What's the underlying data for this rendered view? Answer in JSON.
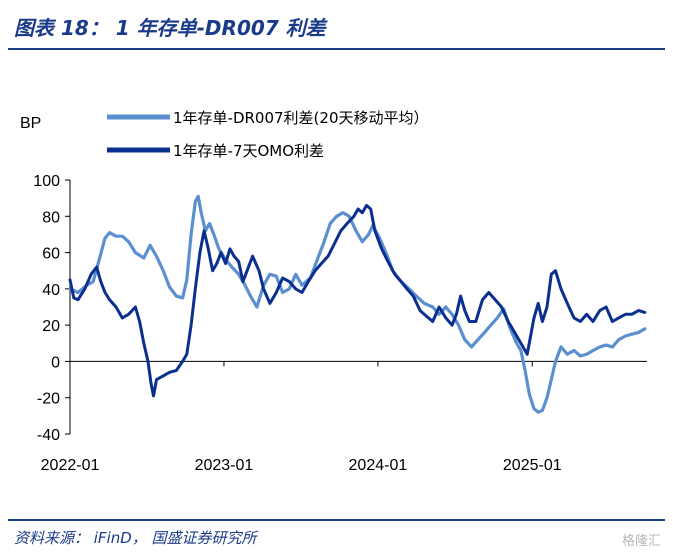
{
  "header": {
    "title": "图表 18： 1 年存单-DR007 利差"
  },
  "footer": {
    "source": "资料来源： iFinD， 国盛证券研究所",
    "watermark": "格隆汇"
  },
  "colors": {
    "accent": "#1a3a8a",
    "series_light": "#5b8fd0",
    "series_dark": "#0a2f8f"
  },
  "chart_data": {
    "type": "line",
    "ylabel": "BP",
    "ylim": [
      -40,
      100
    ],
    "yticks": [
      "100",
      "80",
      "60",
      "40",
      "20",
      "0",
      "-20",
      "-40"
    ],
    "xlim": [
      "2022-01-01",
      "2025-09-30"
    ],
    "xticks": [
      "2022-01",
      "2023-01",
      "2024-01",
      "2025-01"
    ],
    "grid": false,
    "legend": "top",
    "series": [
      {
        "name": "1年存单-DR007利差(20天移动平均）",
        "color": "#5b8fd0",
        "points": [
          [
            "2022-01-01",
            40
          ],
          [
            "2022-01-20",
            38
          ],
          [
            "2022-02-10",
            42
          ],
          [
            "2022-02-25",
            44
          ],
          [
            "2022-03-10",
            55
          ],
          [
            "2022-03-25",
            68
          ],
          [
            "2022-04-05",
            71
          ],
          [
            "2022-04-20",
            69
          ],
          [
            "2022-05-05",
            69
          ],
          [
            "2022-05-20",
            66
          ],
          [
            "2022-06-05",
            60
          ],
          [
            "2022-06-25",
            57
          ],
          [
            "2022-07-10",
            64
          ],
          [
            "2022-07-25",
            58
          ],
          [
            "2022-08-10",
            50
          ],
          [
            "2022-08-25",
            41
          ],
          [
            "2022-09-10",
            36
          ],
          [
            "2022-09-25",
            35
          ],
          [
            "2022-10-05",
            45
          ],
          [
            "2022-10-15",
            70
          ],
          [
            "2022-10-25",
            88
          ],
          [
            "2022-11-01",
            91
          ],
          [
            "2022-11-08",
            82
          ],
          [
            "2022-11-18",
            72
          ],
          [
            "2022-11-28",
            76
          ],
          [
            "2022-12-08",
            70
          ],
          [
            "2022-12-20",
            62
          ],
          [
            "2023-01-05",
            56
          ],
          [
            "2023-01-20",
            52
          ],
          [
            "2023-02-05",
            48
          ],
          [
            "2023-02-20",
            42
          ],
          [
            "2023-03-05",
            36
          ],
          [
            "2023-03-20",
            30
          ],
          [
            "2023-04-05",
            42
          ],
          [
            "2023-04-20",
            48
          ],
          [
            "2023-05-05",
            47
          ],
          [
            "2023-05-20",
            38
          ],
          [
            "2023-06-05",
            40
          ],
          [
            "2023-06-20",
            48
          ],
          [
            "2023-07-05",
            42
          ],
          [
            "2023-07-25",
            46
          ],
          [
            "2023-08-10",
            56
          ],
          [
            "2023-08-25",
            65
          ],
          [
            "2023-09-10",
            76
          ],
          [
            "2023-09-25",
            80
          ],
          [
            "2023-10-10",
            82
          ],
          [
            "2023-10-25",
            80
          ],
          [
            "2023-11-10",
            72
          ],
          [
            "2023-11-25",
            66
          ],
          [
            "2023-12-10",
            70
          ],
          [
            "2023-12-20",
            75
          ],
          [
            "2024-01-05",
            68
          ],
          [
            "2024-01-20",
            60
          ],
          [
            "2024-02-05",
            50
          ],
          [
            "2024-02-25",
            44
          ],
          [
            "2024-03-15",
            40
          ],
          [
            "2024-04-01",
            36
          ],
          [
            "2024-04-20",
            32
          ],
          [
            "2024-05-10",
            30
          ],
          [
            "2024-05-25",
            26
          ],
          [
            "2024-06-10",
            30
          ],
          [
            "2024-06-25",
            26
          ],
          [
            "2024-07-10",
            20
          ],
          [
            "2024-07-25",
            12
          ],
          [
            "2024-08-10",
            8
          ],
          [
            "2024-08-25",
            12
          ],
          [
            "2024-09-10",
            16
          ],
          [
            "2024-09-25",
            20
          ],
          [
            "2024-10-10",
            24
          ],
          [
            "2024-10-25",
            29
          ],
          [
            "2024-11-10",
            18
          ],
          [
            "2024-11-25",
            10
          ],
          [
            "2024-12-05",
            6
          ],
          [
            "2024-12-15",
            -5
          ],
          [
            "2024-12-25",
            -18
          ],
          [
            "2025-01-05",
            -26
          ],
          [
            "2025-01-15",
            -28
          ],
          [
            "2025-01-25",
            -27
          ],
          [
            "2025-02-05",
            -20
          ],
          [
            "2025-02-15",
            -10
          ],
          [
            "2025-02-25",
            0
          ],
          [
            "2025-03-10",
            8
          ],
          [
            "2025-03-25",
            4
          ],
          [
            "2025-04-10",
            6
          ],
          [
            "2025-04-25",
            3
          ],
          [
            "2025-05-10",
            4
          ],
          [
            "2025-05-25",
            6
          ],
          [
            "2025-06-10",
            8
          ],
          [
            "2025-06-25",
            9
          ],
          [
            "2025-07-10",
            8
          ],
          [
            "2025-07-25",
            12
          ],
          [
            "2025-08-10",
            14
          ],
          [
            "2025-08-25",
            15
          ],
          [
            "2025-09-10",
            16
          ],
          [
            "2025-09-25",
            18
          ]
        ]
      },
      {
        "name": "1年存单-7天OMO利差",
        "color": "#0a2f8f",
        "points": [
          [
            "2022-01-01",
            45
          ],
          [
            "2022-01-10",
            35
          ],
          [
            "2022-01-20",
            34
          ],
          [
            "2022-02-05",
            40
          ],
          [
            "2022-02-20",
            48
          ],
          [
            "2022-03-05",
            52
          ],
          [
            "2022-03-15",
            44
          ],
          [
            "2022-03-25",
            38
          ],
          [
            "2022-04-05",
            34
          ],
          [
            "2022-04-20",
            30
          ],
          [
            "2022-05-05",
            24
          ],
          [
            "2022-05-20",
            26
          ],
          [
            "2022-06-05",
            30
          ],
          [
            "2022-06-15",
            22
          ],
          [
            "2022-06-25",
            10
          ],
          [
            "2022-07-05",
            0
          ],
          [
            "2022-07-12",
            -12
          ],
          [
            "2022-07-18",
            -19
          ],
          [
            "2022-07-25",
            -10
          ],
          [
            "2022-08-10",
            -8
          ],
          [
            "2022-08-25",
            -6
          ],
          [
            "2022-09-10",
            -5
          ],
          [
            "2022-09-25",
            0
          ],
          [
            "2022-10-05",
            4
          ],
          [
            "2022-10-15",
            20
          ],
          [
            "2022-10-25",
            40
          ],
          [
            "2022-11-05",
            60
          ],
          [
            "2022-11-15",
            72
          ],
          [
            "2022-11-25",
            62
          ],
          [
            "2022-12-05",
            50
          ],
          [
            "2022-12-15",
            54
          ],
          [
            "2022-12-25",
            60
          ],
          [
            "2023-01-05",
            54
          ],
          [
            "2023-01-15",
            62
          ],
          [
            "2023-01-25",
            58
          ],
          [
            "2023-02-05",
            55
          ],
          [
            "2023-02-15",
            44
          ],
          [
            "2023-02-25",
            50
          ],
          [
            "2023-03-10",
            58
          ],
          [
            "2023-03-25",
            50
          ],
          [
            "2023-04-05",
            40
          ],
          [
            "2023-04-20",
            32
          ],
          [
            "2023-05-05",
            38
          ],
          [
            "2023-05-20",
            46
          ],
          [
            "2023-06-05",
            44
          ],
          [
            "2023-06-20",
            40
          ],
          [
            "2023-07-05",
            38
          ],
          [
            "2023-07-20",
            44
          ],
          [
            "2023-08-05",
            50
          ],
          [
            "2023-08-20",
            54
          ],
          [
            "2023-09-05",
            58
          ],
          [
            "2023-09-20",
            65
          ],
          [
            "2023-10-05",
            72
          ],
          [
            "2023-10-20",
            76
          ],
          [
            "2023-11-05",
            80
          ],
          [
            "2023-11-15",
            84
          ],
          [
            "2023-11-25",
            82
          ],
          [
            "2023-12-05",
            86
          ],
          [
            "2023-12-15",
            84
          ],
          [
            "2023-12-25",
            72
          ],
          [
            "2024-01-10",
            62
          ],
          [
            "2024-01-25",
            55
          ],
          [
            "2024-02-10",
            48
          ],
          [
            "2024-02-25",
            44
          ],
          [
            "2024-03-10",
            40
          ],
          [
            "2024-03-25",
            36
          ],
          [
            "2024-04-10",
            28
          ],
          [
            "2024-04-25",
            25
          ],
          [
            "2024-05-10",
            22
          ],
          [
            "2024-05-25",
            30
          ],
          [
            "2024-06-10",
            24
          ],
          [
            "2024-06-25",
            20
          ],
          [
            "2024-07-05",
            26
          ],
          [
            "2024-07-15",
            36
          ],
          [
            "2024-07-25",
            28
          ],
          [
            "2024-08-05",
            22
          ],
          [
            "2024-08-20",
            22
          ],
          [
            "2024-09-05",
            34
          ],
          [
            "2024-09-20",
            38
          ],
          [
            "2024-10-05",
            34
          ],
          [
            "2024-10-20",
            30
          ],
          [
            "2024-11-05",
            22
          ],
          [
            "2024-11-20",
            16
          ],
          [
            "2024-12-05",
            10
          ],
          [
            "2024-12-20",
            4
          ],
          [
            "2025-01-05",
            24
          ],
          [
            "2025-01-15",
            32
          ],
          [
            "2025-01-25",
            22
          ],
          [
            "2025-02-05",
            30
          ],
          [
            "2025-02-15",
            48
          ],
          [
            "2025-02-25",
            50
          ],
          [
            "2025-03-10",
            40
          ],
          [
            "2025-03-25",
            32
          ],
          [
            "2025-04-10",
            24
          ],
          [
            "2025-04-25",
            22
          ],
          [
            "2025-05-10",
            26
          ],
          [
            "2025-05-25",
            22
          ],
          [
            "2025-06-10",
            28
          ],
          [
            "2025-06-25",
            30
          ],
          [
            "2025-07-10",
            22
          ],
          [
            "2025-07-25",
            24
          ],
          [
            "2025-08-10",
            26
          ],
          [
            "2025-08-25",
            26
          ],
          [
            "2025-09-10",
            28
          ],
          [
            "2025-09-25",
            27
          ]
        ]
      }
    ]
  }
}
